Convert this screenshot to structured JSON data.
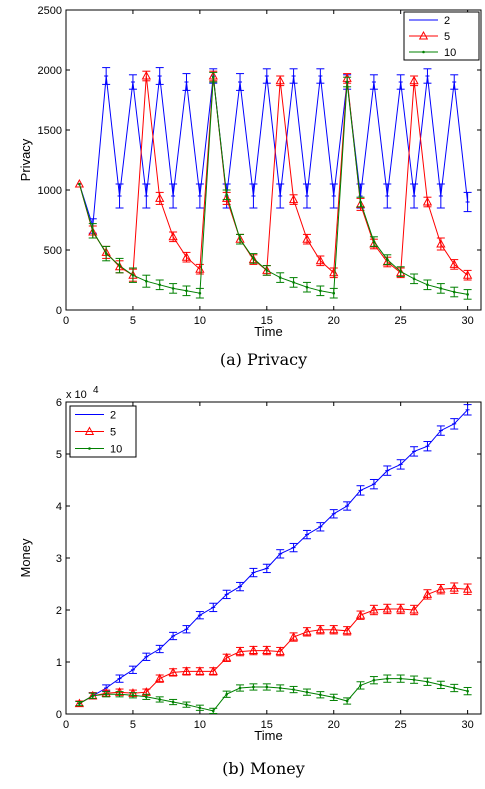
{
  "chart_data": [
    {
      "type": "line",
      "caption": "(a)  Privacy",
      "xlabel": "Time",
      "ylabel": "Privacy",
      "xlim": [
        0,
        31
      ],
      "ylim": [
        0,
        2500
      ],
      "xticks": [
        0,
        5,
        10,
        15,
        20,
        25,
        30
      ],
      "yticks": [
        0,
        500,
        1000,
        1500,
        2000,
        2500
      ],
      "legend_position": "top-right",
      "series": [
        {
          "name": "2",
          "color": "#0000ff",
          "marker": "tick",
          "x": [
            1,
            2,
            3,
            4,
            5,
            6,
            7,
            8,
            9,
            10,
            11,
            12,
            13,
            14,
            15,
            16,
            17,
            18,
            19,
            20,
            21,
            22,
            23,
            24,
            25,
            26,
            27,
            28,
            29,
            30
          ],
          "y": [
            1050,
            700,
            1950,
            950,
            1900,
            950,
            1950,
            950,
            1900,
            950,
            1950,
            950,
            1900,
            950,
            1950,
            950,
            1950,
            950,
            1950,
            950,
            1900,
            950,
            1900,
            950,
            1900,
            950,
            1950,
            950,
            1900,
            900
          ],
          "err": [
            0,
            60,
            70,
            100,
            60,
            100,
            70,
            100,
            70,
            100,
            60,
            100,
            70,
            100,
            60,
            100,
            60,
            100,
            60,
            100,
            60,
            100,
            60,
            100,
            60,
            100,
            60,
            100,
            60,
            80
          ]
        },
        {
          "name": "5",
          "color": "#ff0000",
          "marker": "triangle",
          "x": [
            1,
            2,
            3,
            4,
            5,
            6,
            7,
            8,
            9,
            10,
            11,
            12,
            13,
            14,
            15,
            16,
            17,
            18,
            19,
            20,
            21,
            22,
            23,
            24,
            25,
            26,
            27,
            28,
            29,
            30
          ],
          "y": [
            1050,
            650,
            480,
            360,
            290,
            1950,
            930,
            610,
            440,
            340,
            1950,
            930,
            590,
            420,
            330,
            1910,
            920,
            590,
            410,
            310,
            1930,
            880,
            550,
            400,
            310,
            1910,
            900,
            550,
            380,
            290
          ],
          "err": [
            0,
            50,
            50,
            50,
            50,
            40,
            50,
            40,
            40,
            40,
            40,
            50,
            40,
            40,
            40,
            40,
            40,
            40,
            40,
            40,
            40,
            50,
            40,
            40,
            40,
            40,
            40,
            50,
            40,
            40
          ]
        },
        {
          "name": "10",
          "color": "#008000",
          "marker": "dot",
          "x": [
            1,
            2,
            3,
            4,
            5,
            6,
            7,
            8,
            9,
            10,
            11,
            12,
            13,
            14,
            15,
            16,
            17,
            18,
            19,
            20,
            21,
            22,
            23,
            24,
            25,
            26,
            27,
            28,
            29,
            30
          ],
          "y": [
            1050,
            660,
            470,
            370,
            290,
            240,
            210,
            180,
            160,
            140,
            1940,
            960,
            590,
            430,
            330,
            270,
            230,
            190,
            160,
            140,
            1900,
            900,
            570,
            420,
            320,
            260,
            210,
            180,
            150,
            130
          ],
          "err": [
            0,
            60,
            60,
            60,
            60,
            50,
            40,
            40,
            40,
            40,
            40,
            40,
            40,
            40,
            40,
            40,
            40,
            40,
            40,
            40,
            40,
            40,
            40,
            40,
            40,
            40,
            40,
            40,
            40,
            40
          ]
        }
      ]
    },
    {
      "type": "line",
      "caption": "(b)  Money",
      "xlabel": "Time",
      "ylabel": "Money",
      "multiplier_base": "x 10",
      "multiplier_exp": "4",
      "xlim": [
        0,
        31
      ],
      "ylim": [
        0,
        6
      ],
      "xticks": [
        0,
        5,
        10,
        15,
        20,
        25,
        30
      ],
      "yticks": [
        0,
        1,
        2,
        3,
        4,
        5,
        6
      ],
      "legend_position": "top-left",
      "series": [
        {
          "name": "2",
          "color": "#0000ff",
          "marker": "tick",
          "x": [
            1,
            2,
            3,
            4,
            5,
            6,
            7,
            8,
            9,
            10,
            11,
            12,
            13,
            14,
            15,
            16,
            17,
            18,
            19,
            20,
            21,
            22,
            23,
            24,
            25,
            26,
            27,
            28,
            29,
            30
          ],
          "y": [
            0.2,
            0.35,
            0.5,
            0.68,
            0.85,
            1.1,
            1.25,
            1.5,
            1.63,
            1.9,
            2.05,
            2.3,
            2.45,
            2.72,
            2.8,
            3.08,
            3.2,
            3.45,
            3.6,
            3.85,
            4.0,
            4.3,
            4.42,
            4.68,
            4.8,
            5.05,
            5.15,
            5.45,
            5.58,
            5.85
          ],
          "err": [
            0.05,
            0.06,
            0.06,
            0.07,
            0.07,
            0.07,
            0.07,
            0.07,
            0.07,
            0.07,
            0.08,
            0.08,
            0.08,
            0.08,
            0.08,
            0.08,
            0.08,
            0.08,
            0.08,
            0.08,
            0.08,
            0.09,
            0.09,
            0.09,
            0.09,
            0.09,
            0.09,
            0.09,
            0.1,
            0.1
          ]
        },
        {
          "name": "5",
          "color": "#ff0000",
          "marker": "triangle",
          "x": [
            1,
            2,
            3,
            4,
            5,
            6,
            7,
            8,
            9,
            10,
            11,
            12,
            13,
            14,
            15,
            16,
            17,
            18,
            19,
            20,
            21,
            22,
            23,
            24,
            25,
            26,
            27,
            28,
            29,
            30
          ],
          "y": [
            0.2,
            0.35,
            0.4,
            0.42,
            0.4,
            0.42,
            0.68,
            0.8,
            0.82,
            0.82,
            0.82,
            1.08,
            1.2,
            1.22,
            1.22,
            1.2,
            1.48,
            1.58,
            1.62,
            1.62,
            1.6,
            1.9,
            2.0,
            2.02,
            2.02,
            2.0,
            2.3,
            2.4,
            2.42,
            2.4
          ],
          "err": [
            0.05,
            0.06,
            0.06,
            0.06,
            0.06,
            0.06,
            0.07,
            0.07,
            0.07,
            0.07,
            0.07,
            0.07,
            0.08,
            0.08,
            0.08,
            0.08,
            0.08,
            0.08,
            0.08,
            0.08,
            0.08,
            0.08,
            0.09,
            0.09,
            0.09,
            0.09,
            0.09,
            0.09,
            0.1,
            0.1
          ]
        },
        {
          "name": "10",
          "color": "#008000",
          "marker": "dot",
          "x": [
            1,
            2,
            3,
            4,
            5,
            6,
            7,
            8,
            9,
            10,
            11,
            12,
            13,
            14,
            15,
            16,
            17,
            18,
            19,
            20,
            21,
            22,
            23,
            24,
            25,
            26,
            27,
            28,
            29,
            30
          ],
          "y": [
            0.2,
            0.35,
            0.38,
            0.38,
            0.36,
            0.33,
            0.28,
            0.23,
            0.18,
            0.12,
            0.06,
            0.38,
            0.5,
            0.52,
            0.52,
            0.5,
            0.47,
            0.42,
            0.37,
            0.32,
            0.25,
            0.55,
            0.65,
            0.68,
            0.68,
            0.66,
            0.62,
            0.56,
            0.5,
            0.44
          ],
          "err": [
            0.04,
            0.05,
            0.05,
            0.05,
            0.05,
            0.05,
            0.05,
            0.05,
            0.05,
            0.05,
            0.05,
            0.06,
            0.06,
            0.06,
            0.06,
            0.06,
            0.06,
            0.06,
            0.06,
            0.06,
            0.06,
            0.07,
            0.07,
            0.07,
            0.07,
            0.07,
            0.07,
            0.07,
            0.07,
            0.07
          ]
        }
      ]
    }
  ]
}
